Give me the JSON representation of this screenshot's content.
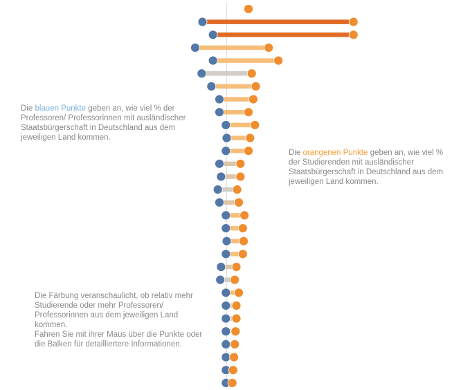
{
  "chart_data": {
    "type": "dumbbell",
    "title": "",
    "xlabel": "",
    "ylabel": "",
    "reference_line": 0,
    "xlim": [
      -4.5,
      16.5
    ],
    "series": [
      {
        "name": "Professoren/ Professorinnen",
        "color": "#4e79a7"
      },
      {
        "name": "Studierende",
        "color": "#f28e2b"
      }
    ],
    "rows": [
      {
        "professoren": null,
        "studierende": 2.7,
        "bar": "none"
      },
      {
        "professoren": -3.0,
        "studierende": 15.7,
        "bar": "dark"
      },
      {
        "professoren": -1.7,
        "studierende": 15.7,
        "bar": "dark"
      },
      {
        "professoren": -3.9,
        "studierende": 5.2,
        "bar": "light"
      },
      {
        "professoren": -1.7,
        "studierende": 6.4,
        "bar": "light"
      },
      {
        "professoren": -3.1,
        "studierende": 3.1,
        "bar": "grey"
      },
      {
        "professoren": -1.9,
        "studierende": 3.6,
        "bar": "light"
      },
      {
        "professoren": -0.9,
        "studierende": 3.3,
        "bar": "light"
      },
      {
        "professoren": -0.9,
        "studierende": 2.7,
        "bar": "light"
      },
      {
        "professoren": -0.1,
        "studierende": 3.5,
        "bar": "light"
      },
      {
        "professoren": 0.0,
        "studierende": 2.9,
        "bar": "light"
      },
      {
        "professoren": -0.1,
        "studierende": 2.7,
        "bar": "light"
      },
      {
        "professoren": -0.9,
        "studierende": 1.7,
        "bar": "tan"
      },
      {
        "professoren": -0.7,
        "studierende": 1.7,
        "bar": "tan"
      },
      {
        "professoren": -1.1,
        "studierende": 1.3,
        "bar": "grey"
      },
      {
        "professoren": -0.9,
        "studierende": 1.5,
        "bar": "tan"
      },
      {
        "professoren": -0.1,
        "studierende": 2.2,
        "bar": "light"
      },
      {
        "professoren": -0.1,
        "studierende": 2.0,
        "bar": "light"
      },
      {
        "professoren": 0.0,
        "studierende": 2.1,
        "bar": "light"
      },
      {
        "professoren": -0.1,
        "studierende": 2.0,
        "bar": "light"
      },
      {
        "professoren": -0.7,
        "studierende": 1.2,
        "bar": "tan"
      },
      {
        "professoren": -0.8,
        "studierende": 1.0,
        "bar": "grey"
      },
      {
        "professoren": -0.1,
        "studierende": 1.5,
        "bar": "light"
      },
      {
        "professoren": -0.1,
        "studierende": 1.2,
        "bar": "tan"
      },
      {
        "professoren": -0.1,
        "studierende": 1.2,
        "bar": "tan"
      },
      {
        "professoren": -0.1,
        "studierende": 1.1,
        "bar": "tan"
      },
      {
        "professoren": -0.1,
        "studierende": 1.0,
        "bar": "tan"
      },
      {
        "professoren": -0.1,
        "studierende": 0.9,
        "bar": "tan"
      },
      {
        "professoren": -0.1,
        "studierende": 0.8,
        "bar": "tan"
      },
      {
        "professoren": -0.1,
        "studierende": 0.7,
        "bar": "tan"
      }
    ],
    "bar_colors": {
      "dark": "#e06a24",
      "light": "#f7be7a",
      "tan": "#dcc6a7",
      "grey": "#d1cec8",
      "none": "#ffffff"
    },
    "dot_colors": {
      "professoren": "#5378a8",
      "studierende": "#ef8d2f"
    },
    "reference_line_color": "#dddddd"
  },
  "notes": {
    "blue": {
      "prefix": "Die ",
      "highlight": "blauen Punkte",
      "suffix": " geben an, wie viel % der Professoren/ Professorinnen mit ausländischer Staatsbürgerschaft in Deutschland aus dem jeweiligen Land kommen.",
      "highlight_color": "#7fb2d9"
    },
    "orange": {
      "prefix": "Die ",
      "highlight": "orangenen Punkte",
      "suffix": " geben an, wie viel % der Studierenden mit ausländischer Staatsbürgerschaft in Deutschland aus dem jeweiligen Land kommen.",
      "highlight_color": "#f5a03c"
    },
    "info": {
      "paragraph1": "Die Färbung veranschaulicht, ob relativ mehr Studierende oder mehr Professoren/ Professorinnen aus dem jeweiligen Land kommen.",
      "paragraph2": "Fahren Sie mit ihrer Maus über die Punkte oder die Balken für detailliertere Informationen."
    }
  }
}
